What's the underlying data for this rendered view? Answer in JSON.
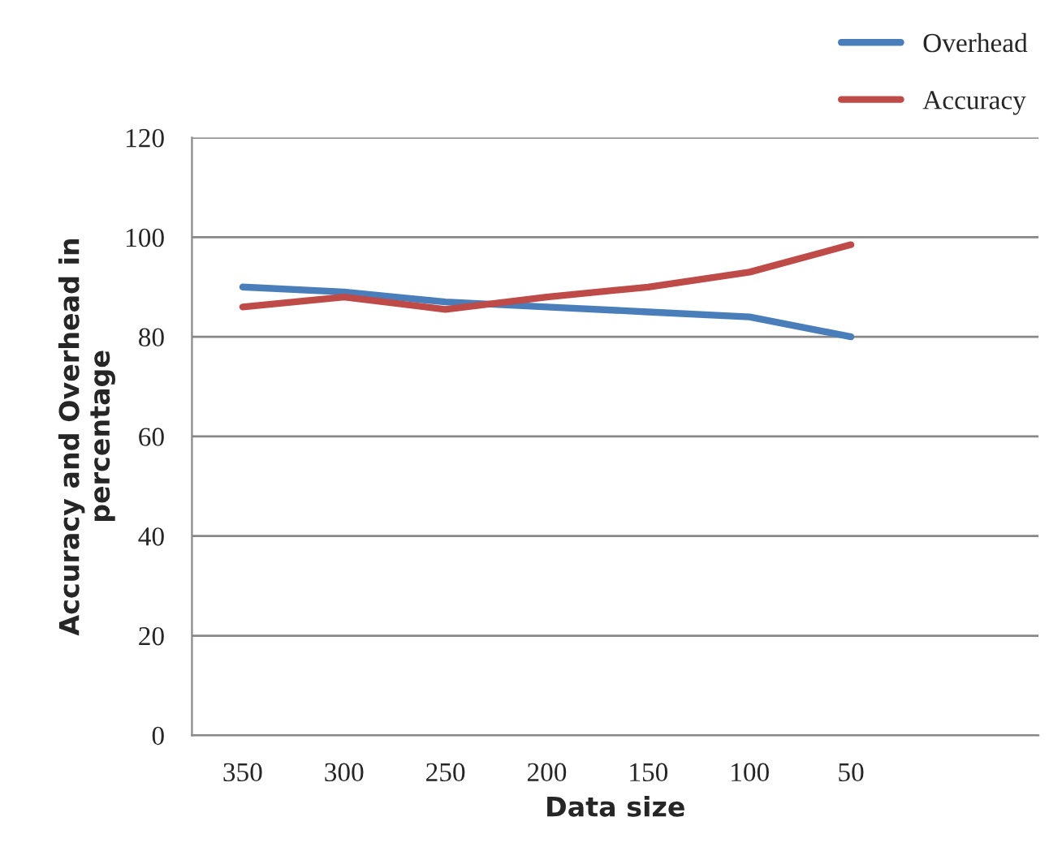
{
  "chart_data": {
    "type": "line",
    "xlabel": "Data size",
    "ylabel": "Accuracy and Overhead in\npercentage",
    "categories": [
      "350",
      "300",
      "250",
      "200",
      "150",
      "100",
      "50"
    ],
    "series": [
      {
        "name": "Overhead",
        "color": "#4a7ebb",
        "values": [
          90,
          89,
          87,
          86,
          85,
          84,
          80
        ]
      },
      {
        "name": "Accuracy",
        "color": "#be4b48",
        "values": [
          86,
          88,
          85.5,
          88,
          90,
          93,
          98.5
        ]
      }
    ],
    "ylim": [
      0,
      120
    ],
    "yticks": [
      0,
      20,
      40,
      60,
      80,
      100,
      120
    ],
    "grid": "y",
    "legend": "top right",
    "marker": "none",
    "line_style": "solid"
  }
}
